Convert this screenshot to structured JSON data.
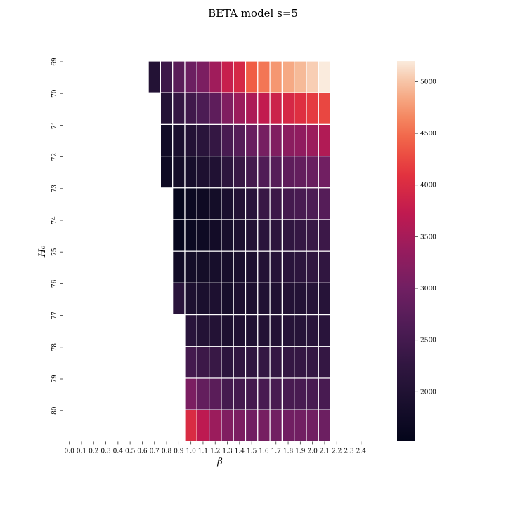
{
  "chart_data": {
    "type": "heatmap",
    "title": "BETA model s=5",
    "xlabel": "β",
    "ylabel": "H₀",
    "x_ticks": [
      "0.0",
      "0.1",
      "0.2",
      "0.3",
      "0.4",
      "0.5",
      "0.6",
      "0.7",
      "0.8",
      "0.9",
      "1.0",
      "1.1",
      "1.2",
      "1.3",
      "1.4",
      "1.5",
      "1.6",
      "1.7",
      "1.8",
      "1.9",
      "2.0",
      "2.1",
      "2.2",
      "2.3",
      "2.4"
    ],
    "y_ticks": [
      "69",
      "70",
      "71",
      "72",
      "73",
      "74",
      "75",
      "76",
      "77",
      "78",
      "79",
      "80"
    ],
    "x": [
      0.0,
      0.1,
      0.2,
      0.3,
      0.4,
      0.5,
      0.6,
      0.7,
      0.8,
      0.9,
      1.0,
      1.1,
      1.2,
      1.3,
      1.4,
      1.5,
      1.6,
      1.7,
      1.8,
      1.9,
      2.0,
      2.1,
      2.2,
      2.3,
      2.4
    ],
    "y": [
      69,
      70,
      71,
      72,
      73,
      74,
      75,
      76,
      77,
      78,
      79,
      80
    ],
    "colorbar": {
      "min": 1520,
      "max": 5200,
      "ticks": [
        2000,
        2500,
        3000,
        3500,
        4000,
        4500,
        5000
      ],
      "colormap": "rocket"
    },
    "grid": true,
    "legend": "colorbar-right",
    "values": [
      [
        null,
        null,
        null,
        null,
        null,
        null,
        null,
        2050,
        2400,
        2750,
        2950,
        3100,
        3450,
        3800,
        3950,
        4400,
        4550,
        4750,
        4850,
        4950,
        5050,
        5200,
        null,
        null,
        null
      ],
      [
        null,
        null,
        null,
        null,
        null,
        null,
        null,
        null,
        2050,
        2300,
        2450,
        2600,
        2800,
        3150,
        3400,
        3550,
        3750,
        3850,
        3950,
        4050,
        4150,
        4250,
        null,
        null,
        null
      ],
      [
        null,
        null,
        null,
        null,
        null,
        null,
        null,
        null,
        1750,
        1900,
        2050,
        2150,
        2300,
        2550,
        2700,
        2900,
        3050,
        3150,
        3250,
        3300,
        3400,
        3600,
        null,
        null,
        null
      ],
      [
        null,
        null,
        null,
        null,
        null,
        null,
        null,
        null,
        1700,
        1800,
        1850,
        1950,
        2000,
        2200,
        2350,
        2500,
        2650,
        2700,
        2800,
        2850,
        2900,
        3000,
        null,
        null,
        null
      ],
      [
        null,
        null,
        null,
        null,
        null,
        null,
        null,
        null,
        null,
        1550,
        1650,
        1700,
        1800,
        1900,
        2050,
        2150,
        2350,
        2400,
        2500,
        2550,
        2600,
        2700,
        null,
        null,
        null
      ],
      [
        null,
        null,
        null,
        null,
        null,
        null,
        null,
        null,
        null,
        1570,
        1650,
        1700,
        1780,
        1850,
        1950,
        2050,
        2150,
        2200,
        2250,
        2300,
        2350,
        2400,
        null,
        null,
        null
      ],
      [
        null,
        null,
        null,
        null,
        null,
        null,
        null,
        null,
        null,
        1750,
        1800,
        1800,
        1850,
        1850,
        1900,
        1950,
        2050,
        2100,
        2150,
        2200,
        2250,
        2250,
        null,
        null,
        null
      ],
      [
        null,
        null,
        null,
        null,
        null,
        null,
        null,
        null,
        null,
        2150,
        1950,
        1900,
        1950,
        1850,
        1950,
        1950,
        2000,
        2000,
        2050,
        2050,
        2100,
        2100,
        null,
        null,
        null
      ],
      [
        null,
        null,
        null,
        null,
        null,
        null,
        null,
        null,
        null,
        null,
        2150,
        2050,
        2050,
        1950,
        2000,
        2000,
        2050,
        2050,
        2100,
        2100,
        2150,
        2150,
        null,
        null,
        null
      ],
      [
        null,
        null,
        null,
        null,
        null,
        null,
        null,
        null,
        null,
        null,
        2500,
        2400,
        2350,
        2200,
        2250,
        2250,
        2300,
        2300,
        2300,
        2300,
        2300,
        2300,
        null,
        null,
        null
      ],
      [
        null,
        null,
        null,
        null,
        null,
        null,
        null,
        null,
        null,
        null,
        3100,
        2850,
        2750,
        2500,
        2500,
        2500,
        2550,
        2550,
        2550,
        2550,
        2550,
        2550,
        null,
        null,
        null
      ],
      [
        null,
        null,
        null,
        null,
        null,
        null,
        null,
        null,
        null,
        null,
        4000,
        3700,
        3400,
        3150,
        3100,
        3000,
        3050,
        3000,
        3000,
        3000,
        3000,
        2950,
        null,
        null,
        null
      ]
    ]
  }
}
